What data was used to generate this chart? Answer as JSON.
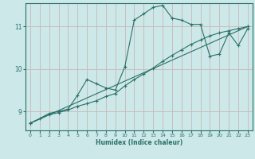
{
  "xlabel": "Humidex (Indice chaleur)",
  "bg_color": "#cce8e8",
  "line_color": "#2a7068",
  "grid_color": "#c8b8b8",
  "xlim": [
    -0.5,
    23.5
  ],
  "ylim": [
    8.55,
    11.55
  ],
  "yticks": [
    9,
    10,
    11
  ],
  "xticks": [
    0,
    1,
    2,
    3,
    4,
    5,
    6,
    7,
    8,
    9,
    10,
    11,
    12,
    13,
    14,
    15,
    16,
    17,
    18,
    19,
    20,
    21,
    22,
    23
  ],
  "line1_x": [
    0,
    1,
    2,
    3,
    4,
    5,
    6,
    7,
    8,
    9,
    10,
    11,
    12,
    13,
    14,
    15,
    16,
    17,
    18,
    19,
    20,
    21,
    22,
    23
  ],
  "line1_y": [
    8.72,
    8.83,
    8.95,
    9.0,
    9.05,
    9.38,
    9.75,
    9.65,
    9.55,
    9.5,
    10.05,
    11.15,
    11.3,
    11.45,
    11.5,
    11.2,
    11.15,
    11.05,
    11.05,
    10.3,
    10.35,
    10.85,
    10.55,
    10.95
  ],
  "line2_x": [
    0,
    2,
    3,
    4,
    5,
    6,
    7,
    8,
    9,
    10,
    11,
    12,
    13,
    14,
    15,
    16,
    17,
    18,
    19,
    20,
    21,
    22,
    23
  ],
  "line2_y": [
    8.72,
    8.92,
    8.97,
    9.03,
    9.12,
    9.18,
    9.25,
    9.35,
    9.42,
    9.6,
    9.75,
    9.88,
    10.02,
    10.18,
    10.32,
    10.45,
    10.58,
    10.68,
    10.78,
    10.85,
    10.9,
    10.95,
    11.0
  ],
  "line3_x": [
    0,
    23
  ],
  "line3_y": [
    8.72,
    11.0
  ],
  "marker": "+"
}
